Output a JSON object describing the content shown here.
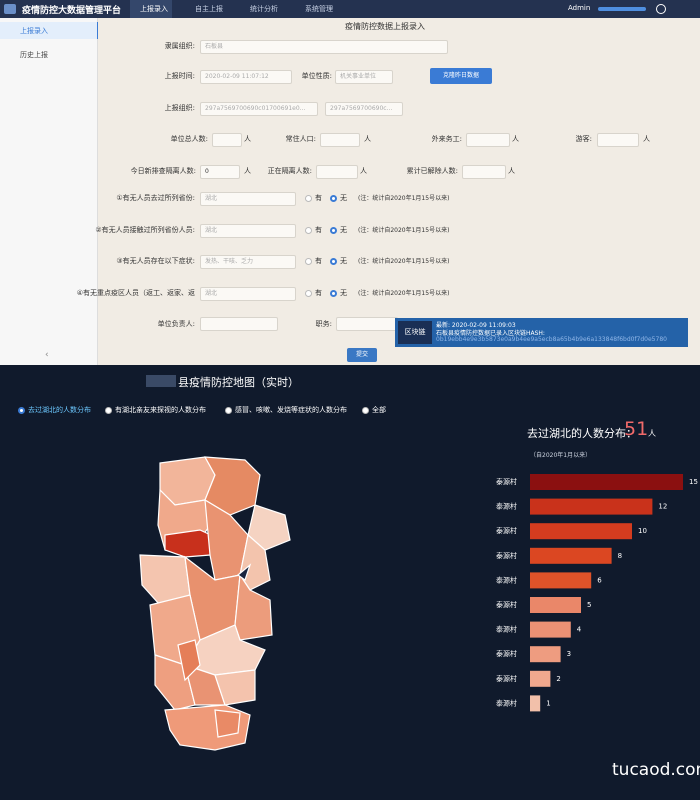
{
  "header": {
    "title": "疫情防控大数据管理平台",
    "nav": [
      "上报录入",
      "自主上报",
      "统计分析",
      "系统管理"
    ],
    "user": "Admin"
  },
  "sidebar": [
    "上报录入",
    "历史上报"
  ],
  "form": {
    "title": "疫情防控数据上报录入",
    "org_label": "隶属组织:",
    "org_value": "石板县",
    "time_label": "上报时间:",
    "time_value": "2020-02-09 11:07:12",
    "unit_label": "单位性质:",
    "unit_value": "机关事业单位",
    "clone_button": "克隆昨日数据",
    "report_org_label": "上报组织:",
    "report_org_values": [
      "297a7569700690c01700691e0...",
      "297a7569700690c..."
    ],
    "unit_text": "人",
    "counts_row1": [
      "单位总人数:",
      "常住人口:",
      "外来务工:",
      "游客:"
    ],
    "counts_row2": [
      "今日新排查隔离人数:",
      "正在隔离人数:",
      "累计已解除人数:"
    ],
    "new_isolated_value": "0",
    "questions": [
      {
        "label": "①有无人员去过所列省份:",
        "placeholder": "湖北"
      },
      {
        "label": "②有无人员接触过所列省份人员:",
        "placeholder": "湖北"
      },
      {
        "label": "③有无人员存在以下症状:",
        "placeholder": "发热、干咳、乏力"
      },
      {
        "label": "④有无重点疫区人员（返工、返家、返",
        "placeholder": "湖北"
      }
    ],
    "radio_options": [
      "有",
      "无"
    ],
    "note": "(注：统计自2020年1月15号以来)",
    "leader_label": "单位负责人:",
    "position_label": "职务:",
    "submit": "提交"
  },
  "blockchain": {
    "logo": "区块链",
    "latest": "最新: 2020-02-09 11:09:03",
    "message": "石板县疫情防控数据已录入区块链HASH:",
    "hash": "0b19ebb4e9e3b5873e0a9b4ee9a5ecb8a65b4b9e6a133848f6bd0f7d0e5780"
  },
  "dashboard": {
    "title": "县疫情防控地图（实时）",
    "filters": [
      "去过湖北的人数分布",
      "有湖北亲友来探视的人数分布",
      "感冒、咳嗽、发烧等症状的人数分布",
      "全部"
    ],
    "summary_label": "去过湖北的人数分布：",
    "summary_value": 51,
    "summary_unit": "人",
    "subtitle": "（自2020年1月以来）"
  },
  "chart_data": {
    "type": "bar",
    "orientation": "horizontal",
    "categories": [
      "泰源村",
      "泰源村",
      "泰源村",
      "泰源村",
      "泰源村",
      "泰源村",
      "泰源村",
      "泰源村",
      "泰源村",
      "泰源村"
    ],
    "values": [
      15,
      12,
      10,
      8,
      6,
      5,
      4,
      3,
      2,
      1
    ],
    "colors": [
      "#8b1010",
      "#c9321b",
      "#d43c1f",
      "#db4722",
      "#df5329",
      "#ea8769",
      "#ec9174",
      "#ee9c80",
      "#f0a88e",
      "#f2c0aa"
    ],
    "xlim": [
      0,
      15
    ]
  },
  "watermark": "tucaod.com"
}
